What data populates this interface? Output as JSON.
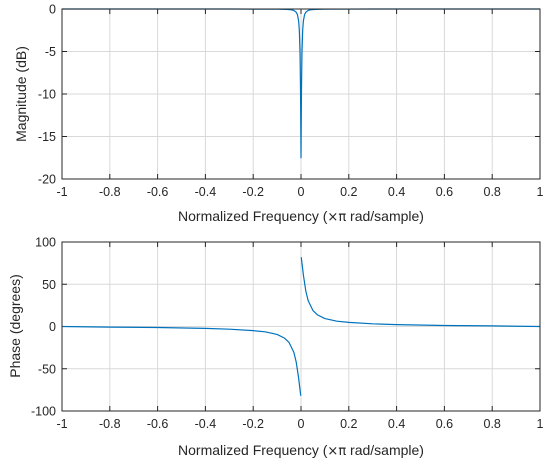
{
  "chart_data": [
    {
      "type": "line",
      "title": "",
      "xlabel_prefix": "Normalized Frequency  (",
      "xlabel_symbol": "×π",
      "xlabel_suffix": " rad/sample)",
      "ylabel": "Magnitude (dB)",
      "xlim": [
        -1,
        1
      ],
      "ylim": [
        -20,
        0
      ],
      "xticks": [
        -1,
        -0.8,
        -0.6,
        -0.4,
        -0.2,
        0,
        0.2,
        0.4,
        0.6,
        0.8,
        1
      ],
      "xtick_labels": [
        "-1",
        "-0.8",
        "-0.6",
        "-0.4",
        "-0.2",
        "0",
        "0.2",
        "0.4",
        "0.6",
        "0.8",
        "1"
      ],
      "yticks": [
        0,
        -5,
        -10,
        -15,
        -20
      ],
      "ytick_labels": [
        "0",
        "-5",
        "-10",
        "-15",
        "-20"
      ],
      "grid": true,
      "color": "#0072bd",
      "series": [
        {
          "x": [
            -1,
            -0.3,
            -0.1,
            -0.06,
            -0.04,
            -0.03,
            -0.02,
            -0.015,
            -0.01,
            -0.007,
            -0.004,
            -0.002,
            0,
            0.002,
            0.004,
            0.007,
            0.01,
            0.015,
            0.02,
            0.03,
            0.04,
            0.06,
            0.1,
            0.3,
            1
          ],
          "y": [
            0,
            0,
            -0.02,
            -0.04,
            -0.09,
            -0.17,
            -0.38,
            -0.66,
            -1.38,
            -2.5,
            -5.2,
            -9.5,
            -17.5,
            -9.5,
            -5.2,
            -2.5,
            -1.38,
            -0.66,
            -0.38,
            -0.17,
            -0.09,
            -0.04,
            -0.02,
            0,
            0
          ]
        }
      ]
    },
    {
      "type": "line",
      "title": "",
      "xlabel_prefix": "Normalized Frequency  (",
      "xlabel_symbol": "×π",
      "xlabel_suffix": " rad/sample)",
      "ylabel": "Phase (degrees)",
      "xlim": [
        -1,
        1
      ],
      "ylim": [
        -100,
        100
      ],
      "xticks": [
        -1,
        -0.8,
        -0.6,
        -0.4,
        -0.2,
        0,
        0.2,
        0.4,
        0.6,
        0.8,
        1
      ],
      "xtick_labels": [
        "-1",
        "-0.8",
        "-0.6",
        "-0.4",
        "-0.2",
        "0",
        "0.2",
        "0.4",
        "0.6",
        "0.8",
        "1"
      ],
      "yticks": [
        100,
        50,
        0,
        -50,
        -100
      ],
      "ytick_labels": [
        "100",
        "50",
        "0",
        "-50",
        "-100"
      ],
      "grid": true,
      "color": "#0072bd",
      "series": [
        {
          "x": [
            -1,
            -0.8,
            -0.6,
            -0.4,
            -0.3,
            -0.2,
            -0.15,
            -0.1,
            -0.07,
            -0.05,
            -0.03,
            -0.02,
            -0.01,
            -0.005,
            -0.002,
            -0.001,
            0.001,
            0.002,
            0.005,
            0.01,
            0.02,
            0.03,
            0.05,
            0.07,
            0.1,
            0.15,
            0.2,
            0.3,
            0.4,
            0.6,
            0.8,
            1
          ],
          "y": [
            0,
            -0.7,
            -1.2,
            -2.2,
            -3.2,
            -4.9,
            -6.3,
            -9.4,
            -13.6,
            -18.9,
            -30.5,
            -42.2,
            -60.8,
            -72.9,
            -79.6,
            -82,
            82,
            79.6,
            72.9,
            60.8,
            42.2,
            30.5,
            18.9,
            13.6,
            9.4,
            6.3,
            4.9,
            3.2,
            2.2,
            1.2,
            0.7,
            0
          ]
        }
      ]
    }
  ]
}
